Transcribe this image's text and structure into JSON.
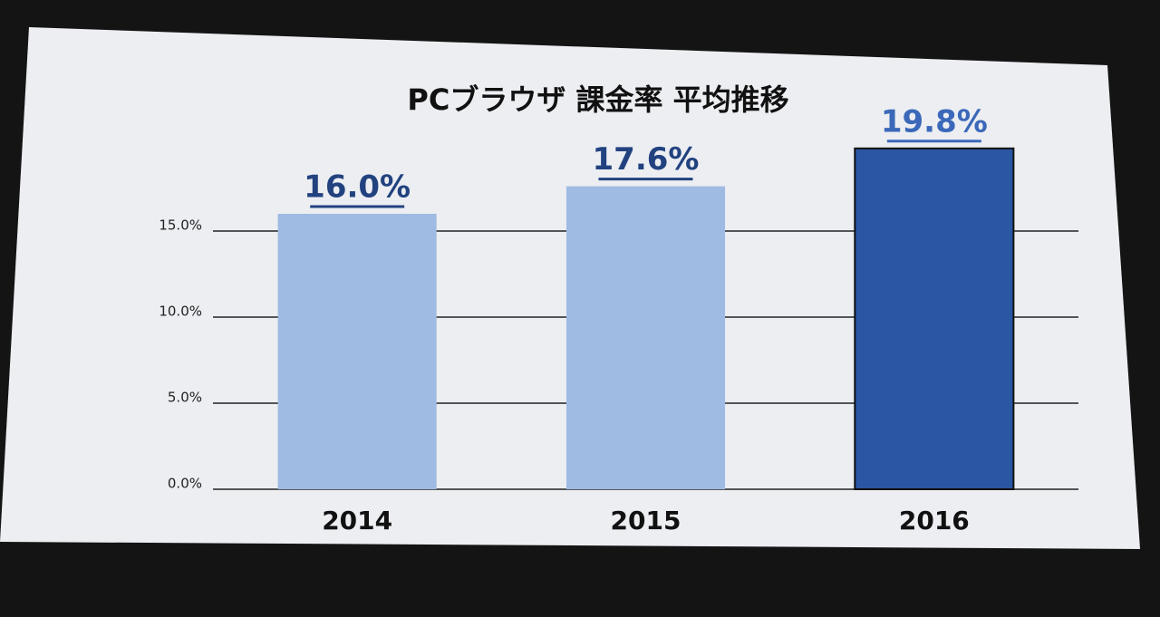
{
  "chart_data": {
    "type": "bar",
    "title": "PCブラウザ 課金率 平均推移",
    "categories": [
      "2014",
      "2015",
      "2016"
    ],
    "values": [
      16.0,
      17.6,
      19.8
    ],
    "value_labels": [
      "16.0%",
      "17.6%",
      "19.8%"
    ],
    "colors": [
      "#9fbbe3",
      "#9fbbe3",
      "#2a56a3"
    ],
    "ylim": [
      0,
      20
    ],
    "yticks": [
      {
        "value": 0,
        "label": "0.0%"
      },
      {
        "value": 5,
        "label": "5.0%"
      },
      {
        "value": 10,
        "label": "10.0%"
      },
      {
        "value": 15,
        "label": "15.0%"
      }
    ],
    "grid": true
  }
}
